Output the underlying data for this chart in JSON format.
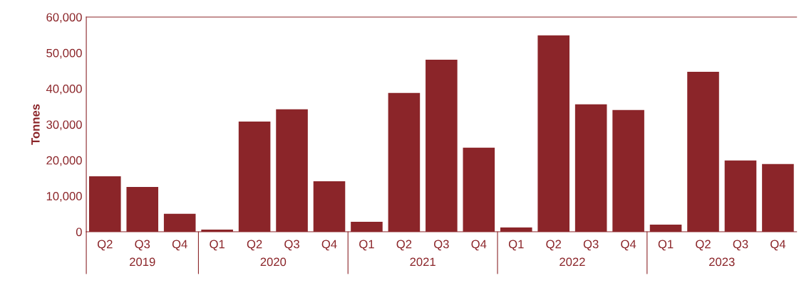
{
  "chart_data": {
    "type": "bar",
    "ylabel": "Tonnes",
    "categories": [
      "Q2",
      "Q3",
      "Q4",
      "Q1",
      "Q2",
      "Q3",
      "Q4",
      "Q1",
      "Q2",
      "Q3",
      "Q4",
      "Q1",
      "Q2",
      "Q3",
      "Q4",
      "Q1",
      "Q2",
      "Q3",
      "Q4"
    ],
    "values": [
      15500,
      12500,
      5000,
      600,
      30800,
      34200,
      14100,
      2800,
      38800,
      48100,
      23500,
      1200,
      54900,
      35600,
      34000,
      2000,
      44700,
      19900,
      18900
    ],
    "color": "#8b2529",
    "annotations": [
      "2019",
      "2020",
      "2021",
      "2022",
      "2023"
    ],
    "ylim": [
      0,
      60000
    ],
    "yticks": [
      0,
      {
        "value": 10000,
        "label": "10,000"
      },
      {
        "value": 20000,
        "label": "20,000"
      },
      {
        "value": 30000,
        "label": "30,000"
      },
      {
        "value": 40000,
        "label": "40,000"
      },
      {
        "value": 50000,
        "label": "50,000"
      },
      {
        "value": 60000,
        "label": "60,000"
      }
    ],
    "grid": false,
    "legend": false
  }
}
